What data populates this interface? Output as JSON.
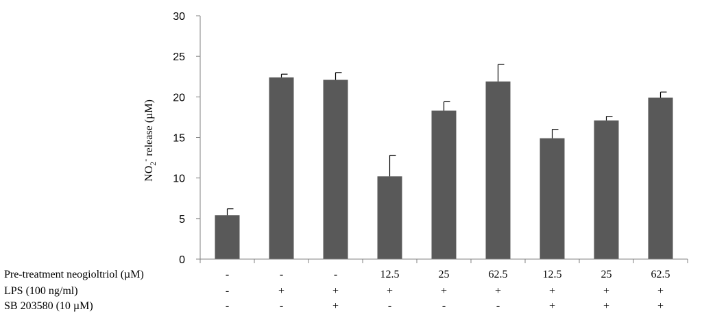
{
  "chart_data": {
    "type": "bar",
    "title": "",
    "ylabel": {
      "prefix": "NO",
      "sub": "2",
      "sup": "-",
      "suffix": " release  (µM)"
    },
    "ylim": [
      0,
      30
    ],
    "yticks": [
      "0",
      "5",
      "10",
      "15",
      "20",
      "25",
      "30"
    ],
    "values": [
      5.4,
      22.4,
      22.1,
      10.2,
      18.3,
      21.9,
      14.9,
      17.1,
      19.9
    ],
    "errors": [
      0.8,
      0.4,
      0.9,
      2.6,
      1.1,
      2.1,
      1.1,
      0.5,
      0.7
    ],
    "bar_color": "#595959",
    "rows": [
      {
        "label": "Pre-treatment neogioltriol (µM)",
        "values": [
          "-",
          "-",
          "-",
          "12.5",
          "25",
          "62.5",
          "12.5",
          "25",
          "62.5"
        ]
      },
      {
        "label": "LPS (100 ng/ml)",
        "values": [
          "-",
          "+",
          "+",
          "+",
          "+",
          "+",
          "+",
          "+",
          "+"
        ]
      },
      {
        "label": "SB 203580 (10 µM)",
        "values": [
          "-",
          "-",
          "+",
          "-",
          "-",
          "-",
          "+",
          "+",
          "+"
        ]
      }
    ]
  }
}
